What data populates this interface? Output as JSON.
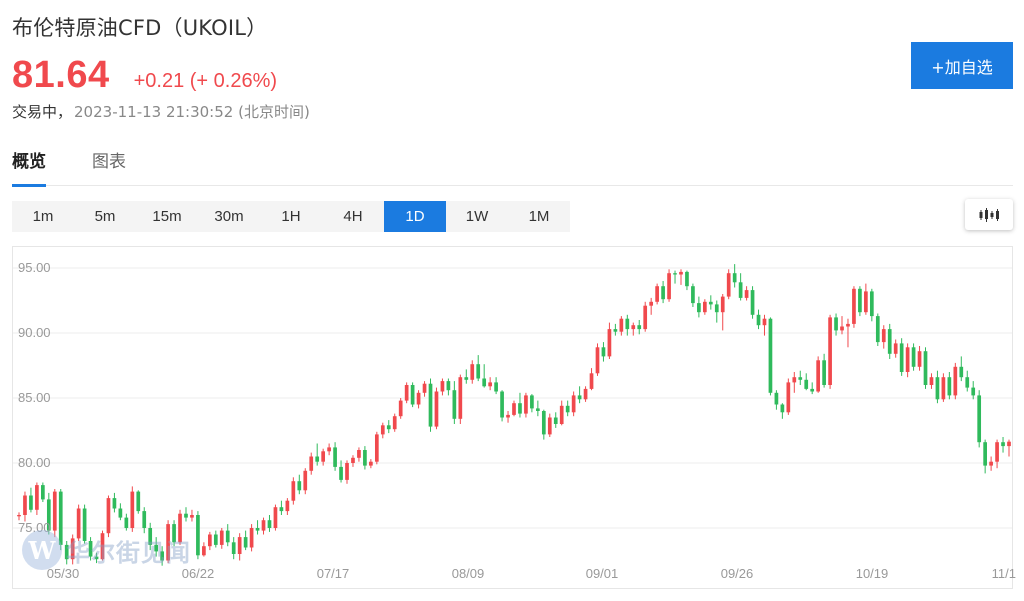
{
  "header": {
    "title": "布伦特原油CFD（UKOIL）",
    "price": "81.64",
    "change": "+0.21 (+ 0.26%)",
    "status": "交易中，",
    "timestamp": "2023-11-13 21:30:52 (北京时间)"
  },
  "actions": {
    "add_label": "+加自选"
  },
  "tabs": [
    {
      "label": "概览",
      "active": true
    },
    {
      "label": "图表",
      "active": false
    }
  ],
  "periods": [
    {
      "label": "1m",
      "active": false
    },
    {
      "label": "5m",
      "active": false
    },
    {
      "label": "15m",
      "active": false
    },
    {
      "label": "30m",
      "active": false
    },
    {
      "label": "1H",
      "active": false
    },
    {
      "label": "4H",
      "active": false
    },
    {
      "label": "1D",
      "active": true
    },
    {
      "label": "1W",
      "active": false
    },
    {
      "label": "1M",
      "active": false
    }
  ],
  "watermark": {
    "mark": "W",
    "text": "华尔街见闻"
  },
  "colors": {
    "up": "#f0494d",
    "down": "#2fba5c",
    "accent": "#1b7be0"
  },
  "chart_data": {
    "type": "candlestick",
    "y_ticks": [
      "95.00",
      "90.00",
      "85.00",
      "80.00",
      "75.00"
    ],
    "ylim": [
      71.8,
      96.5
    ],
    "x_ticks": [
      "05/30",
      "06/22",
      "07/17",
      "08/09",
      "09/01",
      "09/26",
      "10/19",
      "11/1"
    ],
    "grid": true,
    "candles": [
      [
        75.9,
        76.2,
        75.6,
        76.0
      ],
      [
        76.0,
        77.8,
        75.5,
        77.5
      ],
      [
        77.5,
        78.1,
        76.2,
        76.4
      ],
      [
        76.4,
        78.5,
        76.0,
        78.3
      ],
      [
        78.3,
        78.5,
        77.0,
        77.2
      ],
      [
        77.2,
        77.7,
        74.5,
        74.8
      ],
      [
        74.8,
        78.0,
        74.3,
        77.8
      ],
      [
        77.8,
        78.0,
        73.3,
        73.7
      ],
      [
        73.7,
        74.0,
        72.2,
        72.6
      ],
      [
        72.6,
        74.5,
        72.2,
        74.2
      ],
      [
        74.2,
        76.8,
        74.0,
        76.5
      ],
      [
        76.5,
        76.8,
        73.8,
        74.0
      ],
      [
        74.0,
        74.3,
        72.5,
        72.8
      ],
      [
        72.8,
        73.1,
        72.3,
        72.6
      ],
      [
        72.6,
        74.8,
        72.5,
        74.6
      ],
      [
        74.6,
        77.5,
        74.3,
        77.3
      ],
      [
        77.3,
        77.7,
        76.2,
        76.5
      ],
      [
        76.5,
        76.9,
        75.6,
        75.8
      ],
      [
        75.8,
        76.1,
        74.8,
        75.0
      ],
      [
        75.0,
        78.2,
        74.7,
        77.8
      ],
      [
        77.8,
        77.9,
        76.1,
        76.3
      ],
      [
        76.3,
        76.6,
        74.6,
        75.0
      ],
      [
        75.0,
        75.4,
        73.3,
        73.7
      ],
      [
        73.7,
        74.3,
        72.8,
        73.2
      ],
      [
        73.2,
        73.6,
        72.1,
        72.5
      ],
      [
        72.5,
        75.6,
        72.3,
        75.3
      ],
      [
        75.3,
        75.6,
        73.6,
        73.9
      ],
      [
        73.9,
        76.4,
        73.7,
        76.1
      ],
      [
        76.1,
        76.6,
        75.5,
        75.8
      ],
      [
        75.8,
        76.4,
        75.5,
        76.0
      ],
      [
        76.0,
        76.3,
        72.6,
        72.9
      ],
      [
        72.9,
        73.9,
        72.8,
        73.6
      ],
      [
        73.6,
        74.7,
        73.3,
        74.5
      ],
      [
        74.5,
        74.8,
        73.5,
        73.7
      ],
      [
        73.7,
        75.0,
        73.4,
        74.8
      ],
      [
        74.8,
        75.3,
        73.6,
        73.9
      ],
      [
        73.9,
        74.3,
        72.6,
        73.0
      ],
      [
        73.0,
        74.6,
        72.5,
        74.3
      ],
      [
        74.3,
        74.8,
        73.3,
        73.5
      ],
      [
        73.5,
        75.3,
        73.2,
        75.0
      ],
      [
        75.0,
        75.6,
        74.5,
        74.8
      ],
      [
        74.8,
        75.8,
        74.5,
        75.6
      ],
      [
        75.6,
        76.0,
        74.7,
        75.0
      ],
      [
        75.0,
        76.8,
        74.8,
        76.6
      ],
      [
        76.6,
        77.1,
        76.0,
        76.3
      ],
      [
        76.3,
        77.3,
        76.0,
        77.1
      ],
      [
        77.1,
        78.9,
        76.8,
        78.6
      ],
      [
        78.6,
        79.1,
        77.6,
        77.9
      ],
      [
        77.9,
        79.6,
        77.6,
        79.4
      ],
      [
        79.4,
        80.8,
        79.1,
        80.5
      ],
      [
        80.5,
        81.5,
        79.8,
        80.1
      ],
      [
        80.1,
        81.1,
        79.8,
        80.9
      ],
      [
        80.9,
        81.5,
        80.6,
        81.2
      ],
      [
        81.2,
        81.6,
        79.4,
        79.7
      ],
      [
        79.7,
        80.2,
        78.5,
        78.7
      ],
      [
        78.7,
        80.2,
        78.4,
        80.0
      ],
      [
        80.0,
        80.6,
        79.7,
        80.4
      ],
      [
        80.4,
        81.2,
        80.1,
        81.0
      ],
      [
        81.0,
        81.3,
        79.5,
        79.8
      ],
      [
        79.8,
        80.3,
        79.6,
        80.1
      ],
      [
        80.1,
        82.4,
        79.9,
        82.2
      ],
      [
        82.2,
        83.1,
        81.9,
        82.9
      ],
      [
        82.9,
        83.3,
        82.3,
        82.6
      ],
      [
        82.6,
        83.8,
        82.4,
        83.6
      ],
      [
        83.6,
        85.0,
        83.4,
        84.8
      ],
      [
        84.8,
        86.2,
        84.6,
        86.0
      ],
      [
        86.0,
        86.2,
        84.3,
        84.5
      ],
      [
        84.5,
        85.6,
        84.2,
        85.4
      ],
      [
        85.4,
        86.3,
        85.1,
        86.1
      ],
      [
        86.1,
        86.5,
        82.4,
        82.8
      ],
      [
        82.8,
        85.8,
        82.6,
        85.5
      ],
      [
        85.5,
        86.5,
        85.2,
        86.3
      ],
      [
        86.3,
        86.5,
        85.2,
        85.6
      ],
      [
        85.6,
        86.3,
        83.0,
        83.4
      ],
      [
        83.4,
        86.8,
        83.0,
        86.6
      ],
      [
        86.6,
        87.2,
        86.1,
        86.4
      ],
      [
        86.4,
        87.9,
        86.1,
        87.6
      ],
      [
        87.6,
        88.3,
        86.3,
        86.5
      ],
      [
        86.5,
        87.6,
        85.8,
        85.9
      ],
      [
        85.9,
        86.6,
        85.6,
        86.2
      ],
      [
        86.2,
        86.6,
        85.3,
        85.5
      ],
      [
        85.5,
        85.6,
        83.2,
        83.5
      ],
      [
        83.5,
        84.0,
        83.1,
        83.7
      ],
      [
        83.7,
        84.8,
        83.6,
        84.6
      ],
      [
        84.6,
        85.4,
        83.5,
        83.8
      ],
      [
        83.8,
        85.4,
        83.5,
        85.2
      ],
      [
        85.2,
        85.3,
        83.9,
        84.2
      ],
      [
        84.2,
        84.8,
        83.6,
        84.0
      ],
      [
        84.0,
        84.1,
        81.8,
        82.2
      ],
      [
        82.2,
        83.8,
        82.0,
        83.5
      ],
      [
        83.5,
        83.9,
        82.7,
        83.0
      ],
      [
        83.0,
        84.8,
        82.9,
        84.4
      ],
      [
        84.4,
        84.8,
        83.6,
        83.9
      ],
      [
        83.9,
        85.5,
        83.6,
        85.2
      ],
      [
        85.2,
        85.9,
        84.6,
        84.9
      ],
      [
        84.9,
        85.9,
        84.7,
        85.7
      ],
      [
        85.7,
        87.3,
        85.6,
        86.9
      ],
      [
        86.9,
        89.2,
        86.7,
        88.9
      ],
      [
        88.9,
        89.3,
        87.8,
        88.2
      ],
      [
        88.2,
        90.8,
        88.0,
        90.3
      ],
      [
        90.3,
        90.7,
        89.8,
        90.1
      ],
      [
        90.1,
        91.3,
        89.8,
        91.1
      ],
      [
        91.1,
        91.4,
        89.8,
        90.3
      ],
      [
        90.3,
        90.8,
        89.8,
        90.6
      ],
      [
        90.6,
        91.0,
        89.9,
        90.3
      ],
      [
        90.3,
        92.4,
        90.1,
        92.1
      ],
      [
        92.1,
        92.7,
        91.4,
        92.4
      ],
      [
        92.4,
        93.8,
        92.2,
        93.6
      ],
      [
        93.6,
        94.0,
        92.3,
        92.6
      ],
      [
        92.6,
        94.9,
        92.4,
        94.6
      ],
      [
        94.6,
        94.8,
        93.8,
        94.5
      ],
      [
        94.5,
        94.9,
        93.7,
        94.7
      ],
      [
        94.7,
        94.8,
        93.3,
        93.6
      ],
      [
        93.6,
        93.8,
        92.0,
        92.3
      ],
      [
        92.3,
        92.8,
        91.2,
        91.6
      ],
      [
        91.6,
        92.6,
        91.4,
        92.4
      ],
      [
        92.4,
        92.9,
        91.8,
        92.2
      ],
      [
        92.2,
        92.5,
        90.8,
        91.6
      ],
      [
        91.6,
        93.0,
        90.2,
        92.8
      ],
      [
        92.8,
        94.9,
        92.6,
        94.6
      ],
      [
        94.6,
        95.3,
        93.5,
        93.9
      ],
      [
        93.9,
        94.6,
        92.5,
        92.7
      ],
      [
        92.7,
        93.6,
        92.5,
        93.3
      ],
      [
        93.3,
        93.6,
        91.1,
        91.4
      ],
      [
        91.4,
        91.8,
        90.3,
        90.6
      ],
      [
        90.6,
        91.4,
        89.8,
        91.1
      ],
      [
        91.1,
        91.2,
        85.2,
        85.4
      ],
      [
        85.4,
        85.6,
        84.1,
        84.5
      ],
      [
        84.5,
        84.6,
        83.4,
        83.9
      ],
      [
        83.9,
        86.5,
        83.7,
        86.2
      ],
      [
        86.2,
        87.0,
        85.4,
        86.6
      ],
      [
        86.6,
        87.1,
        86.0,
        86.4
      ],
      [
        86.4,
        86.9,
        85.6,
        85.7
      ],
      [
        85.7,
        86.2,
        85.3,
        85.5
      ],
      [
        85.5,
        88.2,
        85.4,
        87.9
      ],
      [
        87.9,
        88.4,
        85.8,
        86.0
      ],
      [
        86.0,
        91.4,
        85.7,
        91.2
      ],
      [
        91.2,
        91.5,
        89.8,
        90.2
      ],
      [
        90.2,
        91.3,
        89.9,
        90.5
      ],
      [
        90.5,
        91.1,
        88.9,
        90.7
      ],
      [
        90.7,
        93.6,
        90.4,
        93.4
      ],
      [
        93.4,
        93.6,
        91.3,
        91.6
      ],
      [
        91.6,
        93.8,
        91.4,
        93.2
      ],
      [
        93.2,
        93.4,
        90.9,
        91.3
      ],
      [
        91.3,
        91.5,
        89.0,
        89.3
      ],
      [
        89.3,
        90.6,
        88.8,
        90.3
      ],
      [
        90.3,
        90.7,
        88.0,
        88.4
      ],
      [
        88.4,
        89.5,
        88.1,
        89.2
      ],
      [
        89.2,
        89.6,
        86.7,
        87.0
      ],
      [
        87.0,
        89.2,
        86.6,
        88.9
      ],
      [
        88.9,
        89.2,
        87.1,
        87.4
      ],
      [
        87.4,
        89.0,
        87.1,
        88.6
      ],
      [
        88.6,
        88.9,
        85.7,
        86.0
      ],
      [
        86.0,
        86.9,
        85.7,
        86.6
      ],
      [
        86.6,
        87.1,
        84.6,
        84.9
      ],
      [
        84.9,
        86.9,
        84.7,
        86.6
      ],
      [
        86.6,
        87.0,
        84.9,
        85.2
      ],
      [
        85.2,
        87.7,
        84.9,
        87.4
      ],
      [
        87.4,
        88.2,
        86.3,
        86.6
      ],
      [
        86.6,
        87.1,
        85.5,
        85.8
      ],
      [
        85.8,
        86.3,
        84.9,
        85.2
      ],
      [
        85.2,
        85.6,
        81.2,
        81.6
      ],
      [
        81.6,
        81.8,
        79.2,
        79.8
      ],
      [
        79.8,
        80.5,
        79.4,
        80.1
      ],
      [
        80.1,
        81.8,
        79.6,
        81.6
      ],
      [
        81.6,
        82.0,
        80.8,
        81.3
      ],
      [
        81.3,
        81.8,
        80.5,
        81.64
      ]
    ]
  }
}
